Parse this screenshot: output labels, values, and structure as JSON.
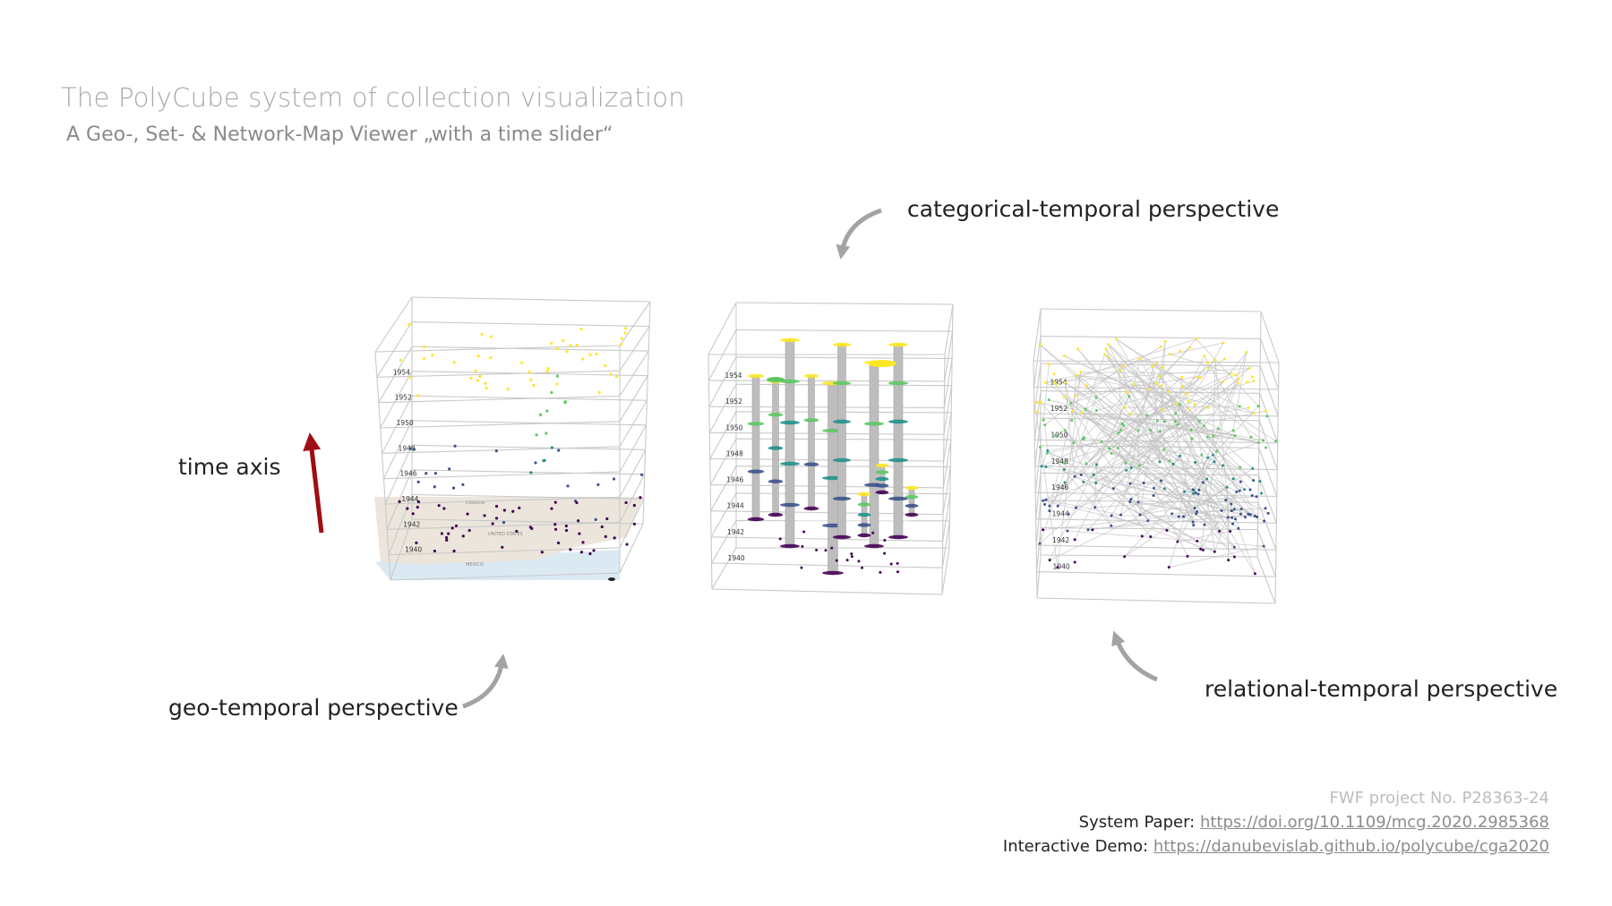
{
  "header": {
    "title": "The PolyCube system of collection visualization",
    "subtitle": "A Geo-, Set- & Network-Map Viewer „with a time slider“"
  },
  "labels": {
    "time_axis": "time axis",
    "geo": "geo-temporal perspective",
    "categorical": "categorical-temporal perspective",
    "relational": "relational-temporal perspective"
  },
  "cube_years": [
    "1954",
    "1952",
    "1950",
    "1948",
    "1946",
    "1944",
    "1942",
    "1940"
  ],
  "map_labels": {
    "country_upper": "CANADA",
    "country_lower": "UNITED STATES",
    "country_bottom": "MEXICO"
  },
  "colors": {
    "time_arrow": "#a00d12",
    "curved_arrow": "#a3a3a3",
    "ramp": [
      "#440154",
      "#3b528b",
      "#21908c",
      "#5dc863",
      "#fde725"
    ]
  },
  "footer": {
    "project": "FWF project No. P28363-24",
    "paper_label": "System Paper: ",
    "paper_link": "https://doi.org/10.1109/mcg.2020.2985368",
    "demo_label": "Interactive Demo: ",
    "demo_link": "https://danubevislab.github.io/polycube/cga2020"
  }
}
